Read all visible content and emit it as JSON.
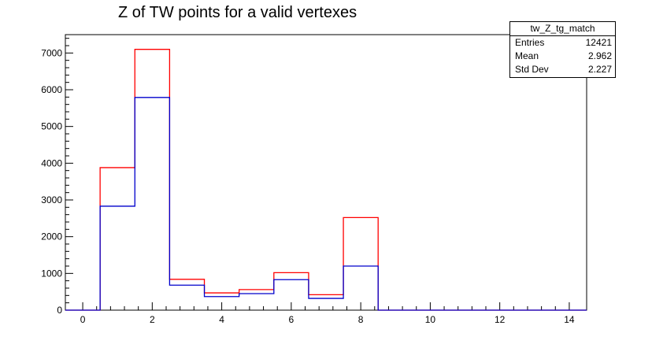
{
  "title": "Z of TW points for a valid vertexes",
  "stats": {
    "name": "tw_Z_tg_match",
    "rows": [
      {
        "label": "Entries",
        "value": "12421"
      },
      {
        "label": "Mean",
        "value": "2.962"
      },
      {
        "label": "Std Dev",
        "value": "2.227"
      }
    ]
  },
  "colors": {
    "red_series": "#ff0000",
    "blue_series": "#0000cc"
  },
  "chart_data": {
    "type": "bar",
    "title": "Z of TW points for a valid vertexes",
    "xlabel": "",
    "ylabel": "",
    "xlim": [
      -0.5,
      14.5
    ],
    "ylim": [
      0,
      7500
    ],
    "grid": false,
    "bin_edges": [
      -0.5,
      0.5,
      1.5,
      2.5,
      3.5,
      4.5,
      5.5,
      6.5,
      7.5,
      8.5,
      9.5,
      10.5,
      11.5,
      12.5,
      13.5,
      14.5
    ],
    "x_ticks": [
      0,
      2,
      4,
      6,
      8,
      10,
      12,
      14
    ],
    "y_ticks": [
      0,
      1000,
      2000,
      3000,
      4000,
      5000,
      6000,
      7000
    ],
    "series": [
      {
        "values": [
          0,
          3880,
          7100,
          840,
          470,
          560,
          1020,
          420,
          2520,
          0,
          0,
          0,
          0,
          0,
          0
        ]
      },
      {
        "values": [
          0,
          2830,
          5790,
          680,
          370,
          450,
          830,
          320,
          1200,
          0,
          0,
          0,
          0,
          0,
          0
        ]
      }
    ]
  }
}
